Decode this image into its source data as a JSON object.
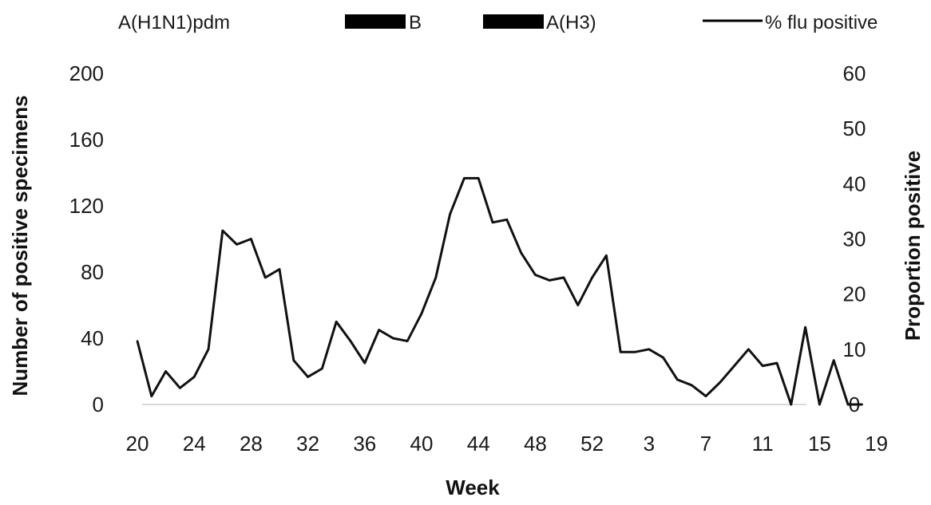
{
  "chart_data": {
    "type": "line",
    "title": "",
    "xlabel": "Week",
    "ylabel_left": "Number of positive specimens",
    "ylabel_right": "Proportion positive",
    "legend_placement": "top",
    "legend": [
      {
        "label": "A(H1N1)pdm",
        "swatch": "bar"
      },
      {
        "label": "B",
        "swatch": "bar"
      },
      {
        "label": "A(H3)",
        "swatch": "bar"
      },
      {
        "label": "% flu positive",
        "swatch": "line"
      }
    ],
    "x_ticks": [
      "20",
      "24",
      "28",
      "32",
      "36",
      "40",
      "44",
      "48",
      "52",
      "3",
      "7",
      "11",
      "15",
      "19"
    ],
    "y_left_ticks": [
      "0",
      "40",
      "80",
      "120",
      "160",
      "200"
    ],
    "y_right_ticks": [
      "0",
      "10",
      "20",
      "30",
      "40",
      "50",
      "60"
    ],
    "ylim_left": [
      0,
      200
    ],
    "ylim_right": [
      0,
      60
    ],
    "grid": false,
    "series": [
      {
        "name": "% flu positive",
        "axis": "right",
        "color": "#111111",
        "x": [
          "20",
          "21",
          "22",
          "23",
          "24",
          "25",
          "26",
          "27",
          "28",
          "29",
          "30",
          "31",
          "32",
          "33",
          "34",
          "35",
          "36",
          "37",
          "38",
          "39",
          "40",
          "41",
          "42",
          "43",
          "44",
          "45",
          "46",
          "47",
          "48",
          "49",
          "50",
          "51",
          "52",
          "53",
          "1",
          "2",
          "3",
          "4",
          "5",
          "6",
          "7",
          "8",
          "9",
          "10",
          "11",
          "12",
          "13",
          "14",
          "15",
          "16",
          "17",
          "18"
        ],
        "values": [
          11.5,
          1.5,
          6,
          3,
          5,
          10,
          31.5,
          29,
          30,
          23,
          24.5,
          8,
          5,
          6.5,
          15,
          11.5,
          7.5,
          13.5,
          12,
          11.5,
          16.5,
          23,
          34.5,
          41,
          41,
          33,
          33.5,
          27.5,
          23.5,
          22.5,
          23,
          18,
          23,
          27,
          9.5,
          9.5,
          10,
          8.5,
          4.5,
          3.5,
          1.5,
          4,
          7,
          10,
          7,
          7.5,
          0,
          14,
          0,
          8,
          0,
          0
        ]
      },
      {
        "name": "A(H1N1)pdm",
        "axis": "left",
        "color": "#000000",
        "values": []
      },
      {
        "name": "B",
        "axis": "left",
        "color": "#000000",
        "values": []
      },
      {
        "name": "A(H3)",
        "axis": "left",
        "color": "#000000",
        "values": []
      }
    ]
  }
}
